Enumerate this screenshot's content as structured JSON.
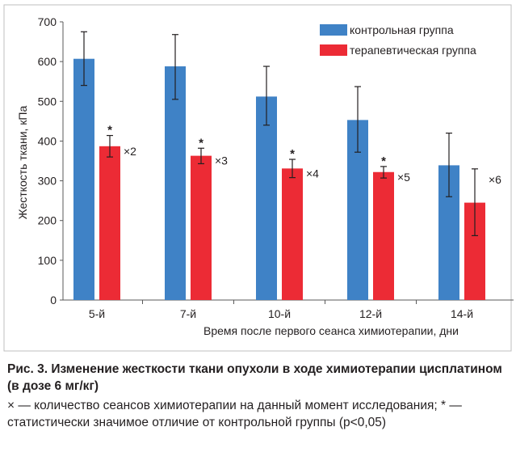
{
  "chart_data": {
    "type": "bar",
    "title": "",
    "ylabel": "Жесткость ткани, кПа",
    "xlabel": "Время после первого сеанса химиотерапии, дни",
    "categories": [
      "5-й",
      "7-й",
      "10-й",
      "12-й",
      "14-й"
    ],
    "ylim": [
      0,
      700
    ],
    "yticks": [
      "0",
      "100",
      "200",
      "300",
      "400",
      "500",
      "600",
      "700"
    ],
    "grid": false,
    "legend_position": "top-right",
    "series": [
      {
        "name": "контрольная группа",
        "color": "#3f82c6",
        "values": [
          607,
          588,
          512,
          453,
          339
        ],
        "err_low": [
          540,
          505,
          440,
          372,
          260
        ],
        "err_high": [
          675,
          668,
          588,
          537,
          420
        ],
        "significance": [
          "",
          "",
          "",
          "",
          ""
        ],
        "annotations": [
          "",
          "",
          "",
          "",
          ""
        ]
      },
      {
        "name": "терапевтическая группа",
        "color": "#ec2b35",
        "values": [
          387,
          363,
          331,
          322,
          245
        ],
        "err_low": [
          360,
          343,
          308,
          307,
          162
        ],
        "err_high": [
          414,
          382,
          354,
          336,
          330
        ],
        "significance": [
          "*",
          "*",
          "*",
          "*",
          ""
        ],
        "annotations": [
          "×2",
          "×3",
          "×4",
          "×5",
          "×6"
        ]
      }
    ]
  },
  "caption": {
    "figure": "Рис. 3. Изменение жесткости ткани опухоли в ходе химиотерапии цисплатином (в дозе 6 мг/кг)",
    "note": "× — количество сеансов химиотерапии на данный момент исследования; * — статистически значимое отличие от контрольной группы (p<0,05)"
  }
}
